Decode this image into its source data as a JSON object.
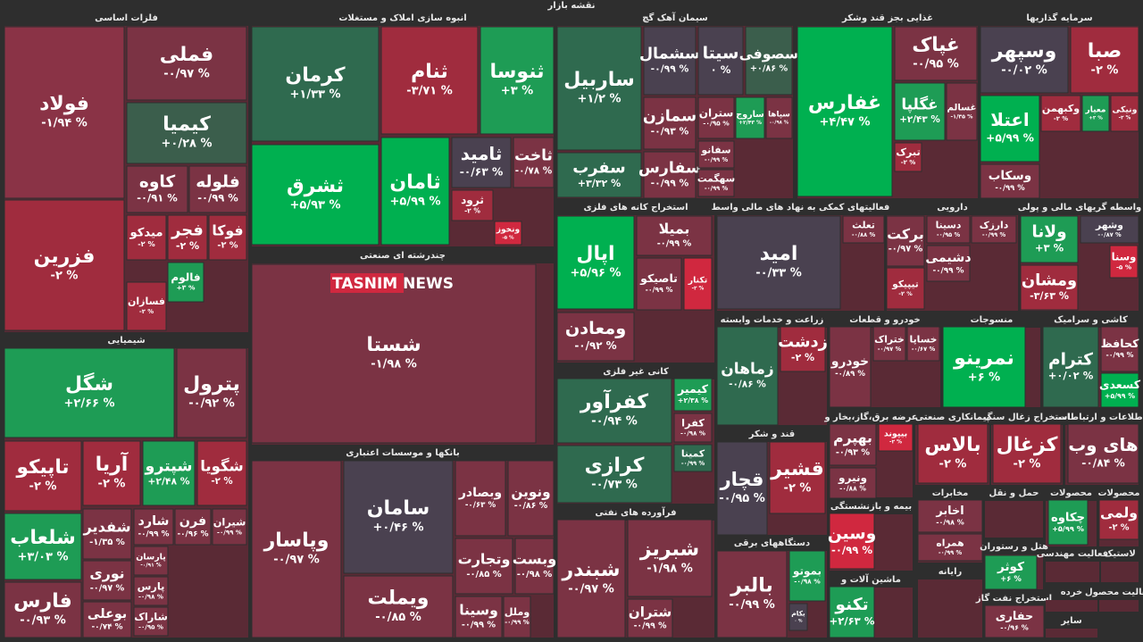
{
  "title": "نقشه بازار",
  "watermark": "TASNIM NEWS",
  "sectors": [
    {
      "name": "فلزات اساسی",
      "tiles": [
        {
          "name": "فولاد",
          "change": "-۱/۹۴ %",
          "color": "#8a3346"
        },
        {
          "name": "فزرین",
          "change": "-۲ %",
          "color": "#a02c3e"
        },
        {
          "name": "فملی",
          "change": "-۰/۹۷ %",
          "color": "#7b3344"
        },
        {
          "name": "کیمیا",
          "change": "+۰/۲۸ %",
          "color": "#3b5e4c"
        },
        {
          "name": "کاوه",
          "change": "-۰/۹۱ %",
          "color": "#7b3344"
        },
        {
          "name": "فلوله",
          "change": "-۰/۹۹ %",
          "color": "#7b3344"
        },
        {
          "name": "میدکو",
          "change": "-۲ %",
          "color": "#a02c3e"
        },
        {
          "name": "فجر",
          "change": "-۲ %",
          "color": "#a02c3e"
        },
        {
          "name": "فوکا",
          "change": "-۲ %",
          "color": "#a02c3e"
        },
        {
          "name": "فسازان",
          "change": "-۲ %",
          "color": "#a02c3e"
        },
        {
          "name": "فالوم",
          "change": "+۳ %",
          "color": "#1e9c55"
        }
      ]
    },
    {
      "name": "شیمیایی",
      "tiles": [
        {
          "name": "شگل",
          "change": "+۲/۶۶ %",
          "color": "#1e9c55"
        },
        {
          "name": "پترول",
          "change": "-۰/۹۲ %",
          "color": "#7b3344"
        },
        {
          "name": "تاپیکو",
          "change": "-۲ %",
          "color": "#a02c3e"
        },
        {
          "name": "آریا",
          "change": "-۲ %",
          "color": "#a02c3e"
        },
        {
          "name": "شپترو",
          "change": "+۲/۴۸ %",
          "color": "#1e9c55"
        },
        {
          "name": "شگویا",
          "change": "-۲ %",
          "color": "#a02c3e"
        },
        {
          "name": "شلعاب",
          "change": "+۳/۰۳ %",
          "color": "#1e9c55"
        },
        {
          "name": "فارس",
          "change": "-۰/۹۳ %",
          "color": "#7b3344"
        },
        {
          "name": "شفدیر",
          "change": "-۱/۳۵ %",
          "color": "#7b3344"
        },
        {
          "name": "شارد",
          "change": "-۰/۹۹ %",
          "color": "#7b3344"
        },
        {
          "name": "فرن",
          "change": "-۰/۹۶ %",
          "color": "#7b3344"
        },
        {
          "name": "شیران",
          "change": "-۰/۹۹ %",
          "color": "#7b3344"
        },
        {
          "name": "نوری",
          "change": "-۰/۹۷ %",
          "color": "#7b3344"
        },
        {
          "name": "بوعلی",
          "change": "-۰/۷۴ %",
          "color": "#7b3344"
        },
        {
          "name": "پارسان",
          "change": "-۰/۹۱ %",
          "color": "#7b3344"
        },
        {
          "name": "پارس",
          "change": "-۰/۹۸ %",
          "color": "#7b3344"
        },
        {
          "name": "شاراک",
          "change": "-۰/۹۵ %",
          "color": "#7b3344"
        }
      ]
    },
    {
      "name": "انبوه سازی املاک و مستغلات",
      "tiles": [
        {
          "name": "کرمان",
          "change": "+۱/۳۳ %",
          "color": "#2f6a4f"
        },
        {
          "name": "ثنام",
          "change": "-۳/۷۱ %",
          "color": "#a02c3e"
        },
        {
          "name": "ثنوسا",
          "change": "+۳ %",
          "color": "#1e9c55"
        },
        {
          "name": "ثشرق",
          "change": "+۵/۹۳ %",
          "color": "#00b050"
        },
        {
          "name": "ثامان",
          "change": "+۵/۹۹ %",
          "color": "#00b050"
        },
        {
          "name": "ثامید",
          "change": "-۰/۶۳ %",
          "color": "#4a4150"
        },
        {
          "name": "ثاخت",
          "change": "-۰/۷۸ %",
          "color": "#7b3344"
        },
        {
          "name": "ثرود",
          "change": "-۲ %",
          "color": "#a02c3e"
        },
        {
          "name": "ونخوز",
          "change": "-۵ %",
          "color": "#d0283f"
        }
      ]
    },
    {
      "name": "چندرشته ای صنعتی",
      "tiles": [
        {
          "name": "شستا",
          "change": "-۱/۹۸ %",
          "color": "#7b3344"
        }
      ]
    },
    {
      "name": "بانکها و موسسات اعتباری",
      "tiles": [
        {
          "name": "وپاسار",
          "change": "-۰/۹۷ %",
          "color": "#7b3344"
        },
        {
          "name": "سامان",
          "change": "+۰/۴۶ %",
          "color": "#4a4150"
        },
        {
          "name": "ویملت",
          "change": "-۰/۸۵ %",
          "color": "#7b3344"
        },
        {
          "name": "وبصادر",
          "change": "-۰/۶۳ %",
          "color": "#7b3344"
        },
        {
          "name": "ونوین",
          "change": "-۰/۸۶ %",
          "color": "#7b3344"
        },
        {
          "name": "وتجارت",
          "change": "-۰/۸۵ %",
          "color": "#7b3344"
        },
        {
          "name": "وبست",
          "change": "-۰/۹۸ %",
          "color": "#7b3344"
        },
        {
          "name": "وسینا",
          "change": "-۰/۹۹ %",
          "color": "#7b3344"
        },
        {
          "name": "وملل",
          "change": "-۰/۹۹ %",
          "color": "#7b3344"
        }
      ]
    },
    {
      "name": "سیمان آهک گچ",
      "tiles": [
        {
          "name": "ساربیل",
          "change": "+۱/۲ %",
          "color": "#2f6a4f"
        },
        {
          "name": "سفرب",
          "change": "+۳/۳۲ %",
          "color": "#2f6a4f"
        },
        {
          "name": "سشمال",
          "change": "-۰/۹۹ %",
          "color": "#4a4150"
        },
        {
          "name": "سیتا",
          "change": "۰ %",
          "color": "#4a4150"
        },
        {
          "name": "سصوفی",
          "change": "+۰/۸۶ %",
          "color": "#3b5e4c"
        },
        {
          "name": "سمازن",
          "change": "-۰/۹۳ %",
          "color": "#7b3344"
        },
        {
          "name": "ستران",
          "change": "-۰/۹۵ %",
          "color": "#7b3344"
        },
        {
          "name": "ساروج",
          "change": "+۲/۴۳ %",
          "color": "#1e9c55"
        },
        {
          "name": "سپاها",
          "change": "-۰/۹۸ %",
          "color": "#7b3344"
        },
        {
          "name": "سفارس",
          "change": "-۰/۹۹ %",
          "color": "#7b3344"
        },
        {
          "name": "سفانو",
          "change": "-۰/۹۹ %",
          "color": "#7b3344"
        },
        {
          "name": "سهگمت",
          "change": "-۰/۹۹ %",
          "color": "#7b3344"
        }
      ]
    },
    {
      "name": "غذایی بجز قند وشکر",
      "tiles": [
        {
          "name": "غفارس",
          "change": "+۴/۴۷ %",
          "color": "#00b050"
        },
        {
          "name": "غپاک",
          "change": "-۰/۹۵ %",
          "color": "#7b3344"
        },
        {
          "name": "غگلپا",
          "change": "+۲/۴۳ %",
          "color": "#1e9c55"
        },
        {
          "name": "غسالم",
          "change": "-۱/۳۵ %",
          "color": "#7b3344"
        },
        {
          "name": "تبرک",
          "change": "-۲ %",
          "color": "#a02c3e"
        }
      ]
    },
    {
      "name": "سرمایه گذاریها",
      "tiles": [
        {
          "name": "وسپهر",
          "change": "-۰/۰۲ %",
          "color": "#4a4150"
        },
        {
          "name": "صبا",
          "change": "-۲ %",
          "color": "#a02c3e"
        },
        {
          "name": "اعتلا",
          "change": "+۵/۹۹ %",
          "color": "#00b050"
        },
        {
          "name": "وکبهمن",
          "change": "-۲ %",
          "color": "#a02c3e"
        },
        {
          "name": "معیار",
          "change": "+۲ %",
          "color": "#1e9c55"
        },
        {
          "name": "ونیکی",
          "change": "-۲ %",
          "color": "#a02c3e"
        },
        {
          "name": "وسکاب",
          "change": "-۰/۹۹ %",
          "color": "#7b3344"
        }
      ]
    },
    {
      "name": "استخراج کانه های فلزی",
      "tiles": [
        {
          "name": "اپال",
          "change": "+۵/۹۶ %",
          "color": "#00b050"
        },
        {
          "name": "بمیلا",
          "change": "-۰/۹۹ %",
          "color": "#7b3344"
        },
        {
          "name": "تاصیکو",
          "change": "-۰/۹۹ %",
          "color": "#7b3344"
        },
        {
          "name": "تکنار",
          "change": "-۲ %",
          "color": "#d0283f"
        },
        {
          "name": "ومعادن",
          "change": "-۰/۹۲ %",
          "color": "#7b3344"
        }
      ]
    },
    {
      "name": "فعالیتهای کمکی به نهاد های مالی واسط",
      "tiles": [
        {
          "name": "امید",
          "change": "-۰/۳۳ %",
          "color": "#4a4150"
        },
        {
          "name": "تعلث",
          "change": "-۰/۸۸ %",
          "color": "#7b3344"
        }
      ]
    },
    {
      "name": "دارویی",
      "tiles": [
        {
          "name": "برکت",
          "change": "-۰/۹۷ %",
          "color": "#7b3344"
        },
        {
          "name": "دسینا",
          "change": "-۰/۹۵ %",
          "color": "#7b3344"
        },
        {
          "name": "دشیمی",
          "change": "-۰/۹۹ %",
          "color": "#7b3344"
        },
        {
          "name": "دارزک",
          "change": "-۰/۹۹ %",
          "color": "#7b3344"
        },
        {
          "name": "تیپیکو",
          "change": "-۲ %",
          "color": "#a02c3e"
        }
      ]
    },
    {
      "name": "واسطه گریهای مالی و پولی",
      "tiles": [
        {
          "name": "ولانا",
          "change": "+۳ %",
          "color": "#1e9c55"
        },
        {
          "name": "وشهر",
          "change": "-۰/۸۷ %",
          "color": "#4a4150"
        },
        {
          "name": "ومشان",
          "change": "-۳/۶۳ %",
          "color": "#a02c3e"
        },
        {
          "name": "وسنا",
          "change": "-۵ %",
          "color": "#d0283f"
        }
      ]
    },
    {
      "name": "کانی غیر فلزی",
      "tiles": [
        {
          "name": "کفرآور",
          "change": "-۰/۹۴ %",
          "color": "#2f6a4f"
        },
        {
          "name": "کیمیر",
          "change": "+۲/۳۸ %",
          "color": "#1e9c55"
        },
        {
          "name": "کفرا",
          "change": "-۰/۹۸ %",
          "color": "#7b3344"
        },
        {
          "name": "کرازی",
          "change": "-۰/۷۳ %",
          "color": "#2f6a4f"
        },
        {
          "name": "کمینا",
          "change": "-۰/۹۹ %",
          "color": "#2f6a4f"
        }
      ]
    },
    {
      "name": "فرآورده های نفتی",
      "tiles": [
        {
          "name": "شبندر",
          "change": "-۰/۹۷ %",
          "color": "#7b3344"
        },
        {
          "name": "شبریز",
          "change": "-۱/۹۸ %",
          "color": "#7b3344"
        },
        {
          "name": "شتران",
          "change": "-۰/۹۹ %",
          "color": "#7b3344"
        }
      ]
    },
    {
      "name": "زراعت و خدمات وابسته",
      "tiles": [
        {
          "name": "زماهان",
          "change": "-۰/۸۶ %",
          "color": "#2f6a4f"
        },
        {
          "name": "زدشت",
          "change": "-۲ %",
          "color": "#a02c3e"
        }
      ]
    },
    {
      "name": "قند و شکر",
      "tiles": [
        {
          "name": "قچار",
          "change": "-۰/۹۵ %",
          "color": "#4a4150"
        },
        {
          "name": "قشیر",
          "change": "-۲ %",
          "color": "#a02c3e"
        }
      ]
    },
    {
      "name": "دستگاههای برقی",
      "tiles": [
        {
          "name": "بالبر",
          "change": "-۰/۹۹ %",
          "color": "#7b3344"
        },
        {
          "name": "بموتو",
          "change": "-۰/۹۸ %",
          "color": "#1e9c55"
        },
        {
          "name": "بکام",
          "change": "۰ %",
          "color": "#4a4150"
        }
      ]
    },
    {
      "name": "خودرو و قطعات",
      "tiles": [
        {
          "name": "خودرو",
          "change": "-۰/۸۹ %",
          "color": "#7b3344"
        },
        {
          "name": "ختراک",
          "change": "-۰/۹۷ %",
          "color": "#7b3344"
        },
        {
          "name": "خساپا",
          "change": "-۰/۶۷ %",
          "color": "#7b3344"
        }
      ]
    },
    {
      "name": "منسوجات",
      "tiles": [
        {
          "name": "نمرینو",
          "change": "+۶ %",
          "color": "#00b050"
        }
      ]
    },
    {
      "name": "کاشی و سرامیک",
      "tiles": [
        {
          "name": "کترام",
          "change": "+۰/۰۲ %",
          "color": "#2f6a4f"
        },
        {
          "name": "کحافظ",
          "change": "-۰/۹۹ %",
          "color": "#7b3344"
        },
        {
          "name": "کسعدی",
          "change": "+۵/۹۹ %",
          "color": "#00b050"
        }
      ]
    },
    {
      "name": "عرضه برق،گاز،بخار و",
      "tiles": [
        {
          "name": "بهپرم",
          "change": "-۰/۹۳ %",
          "color": "#7b3344"
        },
        {
          "name": "بیپوند",
          "change": "-۲ %",
          "color": "#d0283f"
        },
        {
          "name": "ونیرو",
          "change": "-۰/۸۸ %",
          "color": "#7b3344"
        }
      ]
    },
    {
      "name": "بیمه و بازنشستگی",
      "tiles": [
        {
          "name": "وسین",
          "change": "-۰/۹۹ %",
          "color": "#d0283f"
        }
      ]
    },
    {
      "name": "ماشین آلات و",
      "tiles": [
        {
          "name": "تکنو",
          "change": "+۲/۶۳ %",
          "color": "#1e9c55"
        }
      ]
    },
    {
      "name": "پیمانکاری صنعتی",
      "tiles": [
        {
          "name": "بالاس",
          "change": "-۲ %",
          "color": "#a02c3e"
        }
      ]
    },
    {
      "name": "استخراج زغال سنگ",
      "tiles": [
        {
          "name": "کزغال",
          "change": "-۲ %",
          "color": "#a02c3e"
        }
      ]
    },
    {
      "name": "اطلاعات و ارتباطات",
      "tiles": [
        {
          "name": "های وب",
          "change": "-۰/۸۴ %",
          "color": "#7b3344"
        }
      ]
    },
    {
      "name": "مخابرات",
      "tiles": [
        {
          "name": "اخابر",
          "change": "-۰/۹۸ %",
          "color": "#7b3344"
        },
        {
          "name": "همراه",
          "change": "-۰/۹۹ %",
          "color": "#7b3344"
        }
      ]
    },
    {
      "name": "حمل و نقل",
      "tiles": []
    },
    {
      "name": "محصولات",
      "tiles": [
        {
          "name": "چکاوه",
          "change": "+۵/۹۹ %",
          "color": "#1e9c55"
        }
      ]
    },
    {
      "name": "محصولات",
      "tiles": [
        {
          "name": "ولمی",
          "change": "-۲ %",
          "color": "#a02c3e"
        }
      ]
    },
    {
      "name": "رایانه",
      "tiles": []
    },
    {
      "name": "هتل و رستوران",
      "tiles": [
        {
          "name": "کوثر",
          "change": "+۶ %",
          "color": "#1e9c55"
        }
      ]
    },
    {
      "name": "استخراج نفت گاز",
      "tiles": [
        {
          "name": "حفاری",
          "change": "-۰/۹۶ %",
          "color": "#7b3344"
        }
      ]
    },
    {
      "name": "فعالیت مهندسی",
      "tiles": []
    },
    {
      "name": "لاستیک",
      "tiles": []
    },
    {
      "name": "خرده",
      "tiles": []
    },
    {
      "name": "فعالیت محصول",
      "tiles": []
    },
    {
      "name": "سایر",
      "tiles": []
    }
  ]
}
